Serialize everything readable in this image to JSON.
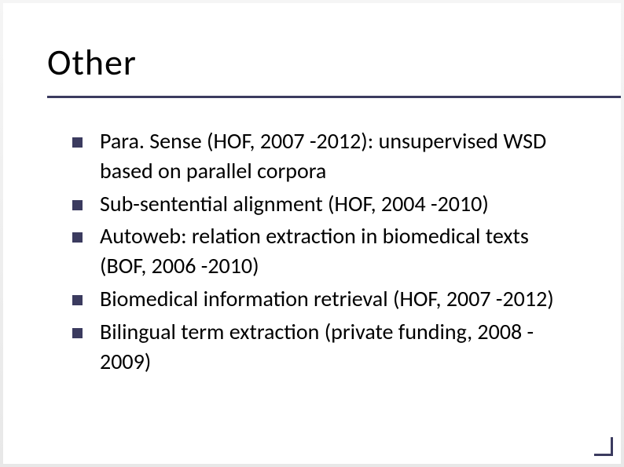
{
  "slide": {
    "title": "Other",
    "bullets": [
      "Para. Sense (HOF, 2007 -2012): unsupervised WSD based on parallel corpora",
      "Sub-sentential alignment (HOF, 2004 -2010)",
      "Autoweb: relation extraction in biomedical texts (BOF, 2006 -2010)",
      "Biomedical information retrieval (HOF, 2007 -2012)",
      "Bilingual term extraction (private funding, 2008 - 2009)"
    ],
    "colors": {
      "accent": "#3b3b5f",
      "text": "#000000",
      "background": "#ffffff",
      "outer_bg_top": "#f5f5f5",
      "outer_bg_bottom": "#e8e8e8"
    },
    "typography": {
      "title_fontsize": 46,
      "body_fontsize": 28,
      "font_family": "Calibri"
    },
    "layout": {
      "type": "title-and-bullets",
      "bullet_marker": "square",
      "bullet_size": 13,
      "line_thickness": 3
    }
  }
}
